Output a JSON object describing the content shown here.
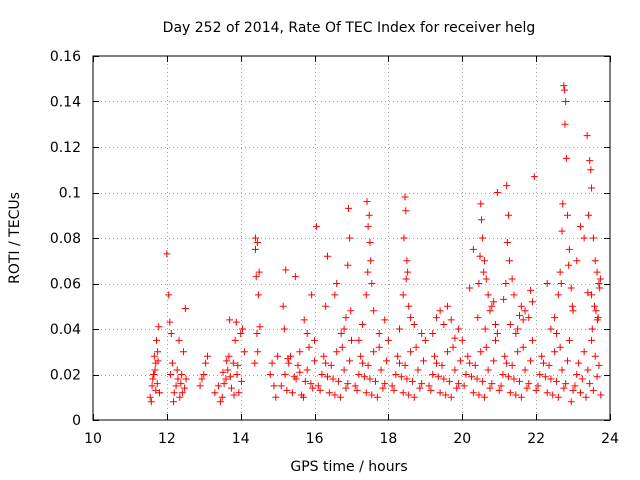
{
  "chart_data": {
    "type": "scatter",
    "title": "Day 252 of 2014, Rate Of TEC Index for receiver helg",
    "xlabel": "GPS time / hours",
    "ylabel": "ROTI / TECUs",
    "xlim": [
      10,
      24
    ],
    "ylim": [
      0,
      0.16
    ],
    "grid": true,
    "marker": "+",
    "color": "#ff0000",
    "x_ticks": [
      10,
      12,
      14,
      16,
      18,
      20,
      22,
      24
    ],
    "x_tick_labels": [
      "10",
      "12",
      "14",
      "16",
      "18",
      "20",
      "22",
      "24"
    ],
    "y_ticks": [
      0,
      0.02,
      0.04,
      0.06,
      0.08,
      0.1,
      0.12,
      0.14,
      0.16
    ],
    "y_tick_labels": [
      "0",
      "0.02",
      "0.04",
      "0.06",
      "0.08",
      "0.1",
      "0.12",
      "0.14",
      "0.16"
    ],
    "series": [
      {
        "name": "ROTI",
        "x": [
          11.55,
          11.6,
          11.65,
          11.7,
          11.75,
          11.8,
          11.62,
          11.68,
          11.72,
          11.58,
          11.66,
          11.74,
          11.78,
          11.64,
          11.7,
          11.76,
          12.0,
          12.05,
          12.08,
          12.12,
          12.2,
          12.3,
          12.4,
          12.5,
          12.15,
          12.25,
          12.35,
          12.45,
          12.18,
          12.28,
          12.38,
          12.48,
          12.1,
          12.42,
          12.52,
          12.33,
          12.9,
          12.95,
          13.0,
          13.05,
          13.1,
          13.3,
          13.4,
          13.5,
          13.6,
          13.7,
          13.8,
          13.9,
          14.0,
          14.1,
          13.45,
          13.55,
          13.65,
          13.75,
          13.85,
          13.95,
          14.05,
          13.62,
          13.72,
          13.82,
          13.92,
          14.02,
          13.52,
          13.68,
          13.88,
          14.4,
          14.45,
          14.5,
          14.42,
          14.48,
          14.44,
          14.46,
          14.38,
          14.52,
          14.4,
          14.8,
          14.9,
          15.0,
          14.85,
          14.95,
          15.1,
          15.2,
          15.3,
          15.4,
          15.5,
          15.6,
          15.7,
          15.8,
          15.9,
          16.0,
          15.25,
          15.35,
          15.45,
          15.55,
          15.65,
          15.75,
          15.85,
          15.95,
          15.22,
          15.48,
          15.72,
          15.92,
          15.15,
          15.18,
          15.28,
          15.6,
          15.8,
          16.0,
          16.1,
          16.2,
          16.3,
          16.4,
          16.5,
          16.6,
          16.7,
          16.8,
          16.9,
          17.0,
          16.15,
          16.25,
          16.35,
          16.45,
          16.55,
          16.65,
          16.75,
          16.85,
          16.95,
          16.05,
          16.35,
          16.6,
          16.85,
          16.92,
          16.95,
          16.9,
          16.3,
          16.8,
          16.55,
          16.72,
          16.98,
          17.1,
          17.2,
          17.3,
          17.4,
          17.5,
          17.6,
          17.7,
          17.8,
          17.9,
          18.0,
          17.15,
          17.25,
          17.35,
          17.45,
          17.55,
          17.65,
          17.75,
          17.85,
          17.95,
          17.42,
          17.48,
          17.5,
          17.45,
          17.52,
          17.55,
          17.4,
          17.6,
          17.3,
          17.75,
          17.2,
          17.9,
          17.44,
          18.1,
          18.2,
          18.3,
          18.4,
          18.5,
          18.6,
          18.7,
          18.8,
          18.9,
          19.0,
          18.15,
          18.25,
          18.35,
          18.45,
          18.55,
          18.65,
          18.75,
          18.85,
          18.95,
          18.45,
          18.47,
          18.5,
          18.48,
          18.4,
          18.55,
          18.6,
          18.3,
          18.7,
          18.9,
          18.42,
          18.52,
          19.1,
          19.2,
          19.3,
          19.4,
          19.5,
          19.6,
          19.7,
          19.8,
          19.9,
          20.0,
          19.15,
          19.25,
          19.35,
          19.45,
          19.55,
          19.65,
          19.75,
          19.85,
          19.95,
          19.3,
          19.6,
          19.9,
          19.2,
          19.5,
          19.8,
          19.4,
          19.7,
          20.05,
          20.1,
          20.2,
          20.3,
          20.4,
          20.5,
          20.6,
          20.7,
          20.8,
          20.9,
          21.0,
          20.15,
          20.25,
          20.35,
          20.45,
          20.55,
          20.65,
          20.75,
          20.85,
          20.95,
          20.5,
          20.52,
          20.55,
          20.48,
          20.6,
          20.58,
          20.45,
          20.7,
          20.8,
          20.42,
          20.75,
          20.2,
          20.85,
          20.65,
          20.9,
          20.3,
          20.62,
          20.95,
          21.05,
          21.1,
          21.2,
          21.3,
          21.4,
          21.5,
          21.6,
          21.7,
          21.8,
          21.9,
          22.0,
          21.15,
          21.25,
          21.35,
          21.45,
          21.55,
          21.65,
          21.75,
          21.85,
          21.95,
          21.2,
          21.25,
          21.22,
          21.18,
          21.4,
          21.6,
          21.8,
          21.5,
          21.3,
          21.7,
          21.9,
          21.45,
          21.65,
          21.35,
          21.28,
          21.55,
          21.85,
          21.12,
          22.05,
          22.1,
          22.2,
          22.3,
          22.4,
          22.5,
          22.6,
          22.7,
          22.8,
          22.9,
          23.0,
          22.15,
          22.25,
          22.35,
          22.45,
          22.55,
          22.65,
          22.75,
          22.85,
          22.95,
          22.75,
          22.77,
          22.8,
          22.78,
          22.82,
          22.72,
          22.85,
          22.7,
          22.9,
          22.65,
          22.68,
          22.95,
          22.6,
          22.98,
          23.0,
          22.5,
          22.4,
          22.55,
          22.3,
          22.88,
          23.05,
          23.1,
          23.15,
          23.2,
          23.25,
          23.3,
          23.35,
          23.4,
          23.45,
          23.5,
          23.55,
          23.6,
          23.65,
          23.7,
          23.75,
          23.45,
          23.48,
          23.5,
          23.42,
          23.55,
          23.6,
          23.65,
          23.7,
          23.72,
          23.5,
          23.58,
          23.38,
          23.62,
          23.68,
          23.74,
          23.3,
          23.2,
          23.1,
          23.52,
          23.66,
          23.4
        ],
        "y": [
          0.01,
          0.015,
          0.02,
          0.025,
          0.03,
          0.012,
          0.018,
          0.022,
          0.035,
          0.008,
          0.028,
          0.016,
          0.041,
          0.02,
          0.013,
          0.026,
          0.073,
          0.055,
          0.043,
          0.038,
          0.012,
          0.018,
          0.02,
          0.049,
          0.025,
          0.015,
          0.01,
          0.03,
          0.008,
          0.022,
          0.016,
          0.014,
          0.02,
          0.012,
          0.018,
          0.035,
          0.015,
          0.018,
          0.02,
          0.025,
          0.028,
          0.012,
          0.015,
          0.01,
          0.018,
          0.044,
          0.025,
          0.02,
          0.038,
          0.03,
          0.008,
          0.016,
          0.022,
          0.014,
          0.035,
          0.012,
          0.04,
          0.026,
          0.019,
          0.011,
          0.024,
          0.017,
          0.021,
          0.028,
          0.043,
          0.08,
          0.078,
          0.065,
          0.063,
          0.055,
          0.038,
          0.03,
          0.025,
          0.041,
          0.075,
          0.02,
          0.015,
          0.028,
          0.025,
          0.01,
          0.015,
          0.02,
          0.025,
          0.012,
          0.018,
          0.03,
          0.01,
          0.022,
          0.016,
          0.035,
          0.013,
          0.028,
          0.019,
          0.024,
          0.011,
          0.017,
          0.032,
          0.014,
          0.066,
          0.063,
          0.044,
          0.055,
          0.05,
          0.04,
          0.027,
          0.021,
          0.038,
          0.026,
          0.015,
          0.02,
          0.025,
          0.012,
          0.018,
          0.03,
          0.01,
          0.022,
          0.016,
          0.035,
          0.013,
          0.028,
          0.019,
          0.024,
          0.011,
          0.017,
          0.032,
          0.014,
          0.026,
          0.085,
          0.072,
          0.06,
          0.045,
          0.093,
          0.08,
          0.068,
          0.05,
          0.04,
          0.055,
          0.038,
          0.048,
          0.015,
          0.02,
          0.025,
          0.012,
          0.018,
          0.03,
          0.01,
          0.022,
          0.016,
          0.035,
          0.013,
          0.028,
          0.019,
          0.024,
          0.011,
          0.017,
          0.032,
          0.014,
          0.026,
          0.096,
          0.09,
          0.078,
          0.085,
          0.07,
          0.06,
          0.055,
          0.048,
          0.042,
          0.038,
          0.035,
          0.044,
          0.065,
          0.015,
          0.02,
          0.025,
          0.012,
          0.018,
          0.03,
          0.01,
          0.022,
          0.016,
          0.035,
          0.013,
          0.028,
          0.019,
          0.024,
          0.011,
          0.017,
          0.032,
          0.014,
          0.026,
          0.098,
          0.092,
          0.07,
          0.062,
          0.055,
          0.05,
          0.045,
          0.04,
          0.042,
          0.038,
          0.08,
          0.065,
          0.015,
          0.02,
          0.025,
          0.012,
          0.018,
          0.03,
          0.01,
          0.022,
          0.016,
          0.035,
          0.013,
          0.028,
          0.019,
          0.024,
          0.011,
          0.017,
          0.032,
          0.014,
          0.026,
          0.045,
          0.05,
          0.04,
          0.038,
          0.042,
          0.036,
          0.048,
          0.044,
          0.015,
          0.02,
          0.025,
          0.012,
          0.018,
          0.03,
          0.01,
          0.022,
          0.016,
          0.035,
          0.013,
          0.028,
          0.019,
          0.024,
          0.011,
          0.017,
          0.032,
          0.014,
          0.026,
          0.1,
          0.095,
          0.088,
          0.08,
          0.072,
          0.07,
          0.065,
          0.06,
          0.055,
          0.05,
          0.045,
          0.048,
          0.058,
          0.052,
          0.062,
          0.042,
          0.075,
          0.04,
          0.038,
          0.015,
          0.02,
          0.025,
          0.012,
          0.018,
          0.03,
          0.01,
          0.022,
          0.016,
          0.035,
          0.013,
          0.028,
          0.019,
          0.024,
          0.011,
          0.017,
          0.032,
          0.014,
          0.026,
          0.107,
          0.103,
          0.09,
          0.078,
          0.06,
          0.055,
          0.05,
          0.045,
          0.04,
          0.042,
          0.048,
          0.052,
          0.038,
          0.044,
          0.062,
          0.07,
          0.046,
          0.057,
          0.053,
          0.015,
          0.02,
          0.025,
          0.012,
          0.018,
          0.03,
          0.01,
          0.022,
          0.016,
          0.035,
          0.013,
          0.028,
          0.019,
          0.024,
          0.011,
          0.017,
          0.032,
          0.014,
          0.026,
          0.008,
          0.147,
          0.145,
          0.14,
          0.13,
          0.115,
          0.095,
          0.09,
          0.083,
          0.075,
          0.065,
          0.06,
          0.058,
          0.055,
          0.05,
          0.048,
          0.045,
          0.04,
          0.038,
          0.06,
          0.068,
          0.015,
          0.02,
          0.025,
          0.012,
          0.018,
          0.03,
          0.01,
          0.022,
          0.016,
          0.035,
          0.013,
          0.028,
          0.019,
          0.024,
          0.011,
          0.114,
          0.11,
          0.102,
          0.09,
          0.08,
          0.07,
          0.065,
          0.06,
          0.058,
          0.055,
          0.05,
          0.125,
          0.048,
          0.045,
          0.062,
          0.08,
          0.085,
          0.07,
          0.04,
          0.044,
          0.056
        ]
      }
    ]
  }
}
